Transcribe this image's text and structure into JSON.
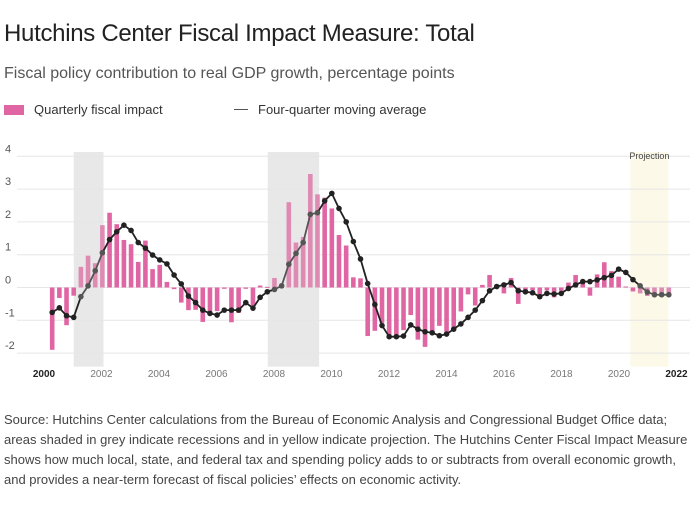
{
  "header": {
    "title": "Hutchins Center Fiscal Impact Measure: Total",
    "subtitle": "Fiscal policy contribution to real GDP growth, percentage points"
  },
  "legend": {
    "bar_label": "Quarterly fiscal impact",
    "line_label": "Four-quarter moving average"
  },
  "colors": {
    "bar": "#e066a3",
    "bar_shaded": "#de8ab3",
    "line": "#222222",
    "line_shaded": "#555555",
    "recession_shade": "#e8e8e8",
    "projection_shade": "#fcf9e8",
    "grid": "#e6e6e6"
  },
  "footer": {
    "source": "Source: Hutchins Center calculations from the Bureau of Economic Analysis and Congressional Budget Office data; areas shaded in grey indicate recessions and in yellow indicate projection. The Hutchins Center Fiscal Impact Measure shows how much local, state, and federal tax and spending policy adds to or subtracts from overall economic growth, and provides a near-term forecast of fiscal policies’ effects on economic activity."
  },
  "chart_data": {
    "type": "bar",
    "title": "Hutchins Center Fiscal Impact Measure: Total",
    "subtitle": "Fiscal policy contribution to real GDP growth, percentage points",
    "xlabel": "",
    "ylabel": "",
    "x_start": "2000 Q1",
    "x_frequency": "quarterly",
    "xlim": [
      2000,
      2022
    ],
    "ylim": [
      -2.2,
      4.1
    ],
    "yticks": [
      4,
      3,
      2,
      1,
      0,
      -1,
      -2
    ],
    "xticks": [
      "2000",
      "2002",
      "2004",
      "2006",
      "2008",
      "2010",
      "2012",
      "2014",
      "2016",
      "2018",
      "2020",
      "2022"
    ],
    "xticks_bold": [
      "2000",
      "2022"
    ],
    "grid": true,
    "legend_position": "top-left",
    "annotations": [
      {
        "text": "Projection",
        "region": "projection"
      }
    ],
    "shaded_regions": [
      {
        "kind": "recession",
        "start": 2001.0,
        "end": 2002.0
      },
      {
        "kind": "recession",
        "start": 2007.75,
        "end": 2009.5
      },
      {
        "kind": "projection",
        "start": 2020.5,
        "end": 2021.75,
        "label": "Projection"
      }
    ],
    "series": [
      {
        "name": "Quarterly fiscal impact",
        "kind": "bar",
        "values": [
          -1.9,
          -0.32,
          -1.15,
          -0.25,
          0.63,
          0.97,
          0.74,
          1.9,
          2.28,
          1.93,
          1.45,
          1.32,
          0.78,
          1.43,
          0.56,
          0.69,
          0.17,
          -0.05,
          -0.46,
          -0.69,
          -0.68,
          -1.05,
          -0.81,
          -0.72,
          -0.04,
          -1.06,
          -0.77,
          -0.04,
          -0.56,
          0.06,
          0.02,
          0.29,
          0.02,
          2.6,
          1.37,
          1.54,
          3.46,
          2.84,
          2.74,
          2.41,
          1.6,
          1.28,
          0.31,
          0.28,
          -1.48,
          -1.32,
          -1.08,
          -1.53,
          -1.5,
          -1.3,
          -0.84,
          -1.59,
          -1.81,
          -1.4,
          -1.17,
          -1.35,
          -1.2,
          -0.73,
          -0.21,
          -0.55,
          0.08,
          0.38,
          -0.03,
          -0.18,
          0.29,
          -0.5,
          -0.1,
          -0.08,
          -0.34,
          -0.09,
          -0.3,
          -0.1,
          0.15,
          0.38,
          0.15,
          -0.25,
          0.4,
          0.77,
          0.5,
          0.33,
          0.03,
          -0.12,
          -0.18,
          -0.26,
          -0.26,
          -0.26,
          -0.26
        ]
      },
      {
        "name": "Four-quarter moving average",
        "kind": "line",
        "values": [
          -0.76,
          -0.62,
          -0.86,
          -0.91,
          -0.28,
          0.05,
          0.51,
          1.06,
          1.46,
          1.7,
          1.9,
          1.74,
          1.37,
          1.2,
          0.99,
          0.84,
          0.72,
          0.38,
          0.11,
          -0.26,
          -0.46,
          -0.69,
          -0.79,
          -0.84,
          -0.69,
          -0.69,
          -0.69,
          -0.46,
          -0.63,
          -0.3,
          -0.13,
          -0.06,
          0.05,
          0.71,
          1.04,
          1.37,
          2.23,
          2.28,
          2.64,
          2.87,
          2.41,
          2.0,
          1.4,
          0.87,
          0.12,
          -0.52,
          -1.16,
          -1.5,
          -1.5,
          -1.48,
          -1.14,
          -1.27,
          -1.35,
          -1.38,
          -1.47,
          -1.42,
          -1.27,
          -1.11,
          -0.91,
          -0.69,
          -0.4,
          -0.1,
          0.03,
          0.08,
          0.15,
          -0.1,
          -0.13,
          -0.16,
          -0.28,
          -0.18,
          -0.2,
          -0.18,
          -0.03,
          0.08,
          0.18,
          0.18,
          0.23,
          0.3,
          0.37,
          0.56,
          0.46,
          0.24,
          0.05,
          -0.14,
          -0.22,
          -0.22,
          -0.22
        ]
      }
    ]
  }
}
